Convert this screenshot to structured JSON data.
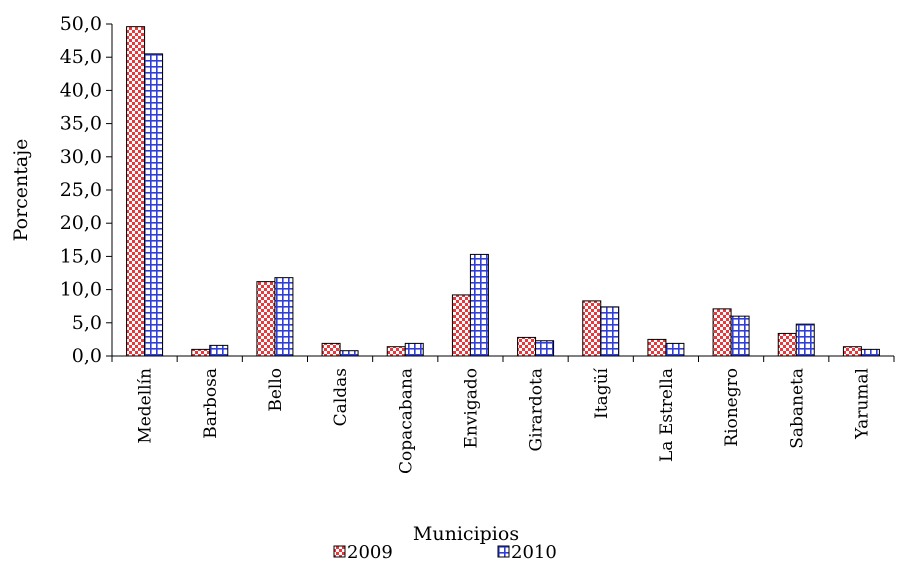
{
  "chart_data": {
    "type": "bar",
    "title": "",
    "xlabel": "Municipios",
    "ylabel": "Porcentaje",
    "ylim": [
      0,
      50
    ],
    "ytick_step": 5,
    "ytick_labels": [
      "0,0",
      "5,0",
      "10,0",
      "15,0",
      "20,0",
      "25,0",
      "30,0",
      "35,0",
      "40,0",
      "45,0",
      "50,0"
    ],
    "categories": [
      "Medellín",
      "Barbosa",
      "Bello",
      "Caldas",
      "Copacabana",
      "Envigado",
      "Girardota",
      "Itagüí",
      "La Estrella",
      "Rionegro",
      "Sabaneta",
      "Yarumal"
    ],
    "series": [
      {
        "name": "2009",
        "color": "#e8383b",
        "pattern": "checker",
        "values": [
          49.6,
          1.0,
          11.2,
          1.9,
          1.4,
          9.2,
          2.8,
          8.3,
          2.5,
          7.1,
          3.4,
          1.4
        ]
      },
      {
        "name": "2010",
        "color": "#2f3fd8",
        "pattern": "grid",
        "values": [
          45.5,
          1.6,
          11.8,
          0.8,
          1.9,
          15.3,
          2.3,
          7.4,
          1.9,
          6.0,
          4.8,
          1.0
        ]
      }
    ],
    "grid": false,
    "legend": "bottom"
  }
}
